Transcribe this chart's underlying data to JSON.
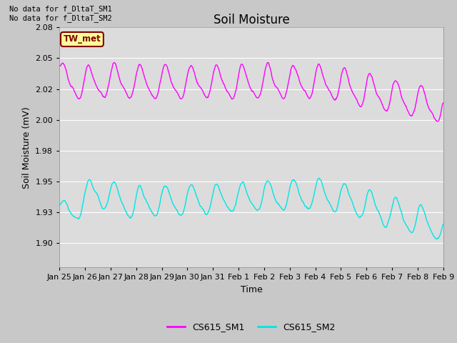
{
  "title": "Soil Moisture",
  "ylabel": "Soil Moisture (mV)",
  "xlabel": "Time",
  "ylim": [
    1.88,
    2.075
  ],
  "xtick_labels": [
    "Jan 25",
    "Jan 26",
    "Jan 27",
    "Jan 28",
    "Jan 29",
    "Jan 30",
    "Jan 31",
    "Feb 1",
    "Feb 2",
    "Feb 3",
    "Feb 4",
    "Feb 5",
    "Feb 6",
    "Feb 7",
    "Feb 8",
    "Feb 9"
  ],
  "color_sm1": "#ff00ff",
  "color_sm2": "#00e5e5",
  "legend_label_sm1": "CS615_SM1",
  "legend_label_sm2": "CS615_SM2",
  "annotation_top_left": "No data for f_DltaT_SM1\nNo data for f_DltaT_SM2",
  "annotation_color": "#000000",
  "box_label": "TW_met",
  "box_facecolor": "#ffff99",
  "box_edgecolor": "#800000",
  "box_textcolor": "#800000",
  "fig_bg_color": "#c8c8c8",
  "plot_bg_color": "#dcdcdc",
  "grid_color": "#ffffff",
  "title_fontsize": 12,
  "axis_fontsize": 9,
  "tick_fontsize": 8,
  "linewidth": 1.0
}
